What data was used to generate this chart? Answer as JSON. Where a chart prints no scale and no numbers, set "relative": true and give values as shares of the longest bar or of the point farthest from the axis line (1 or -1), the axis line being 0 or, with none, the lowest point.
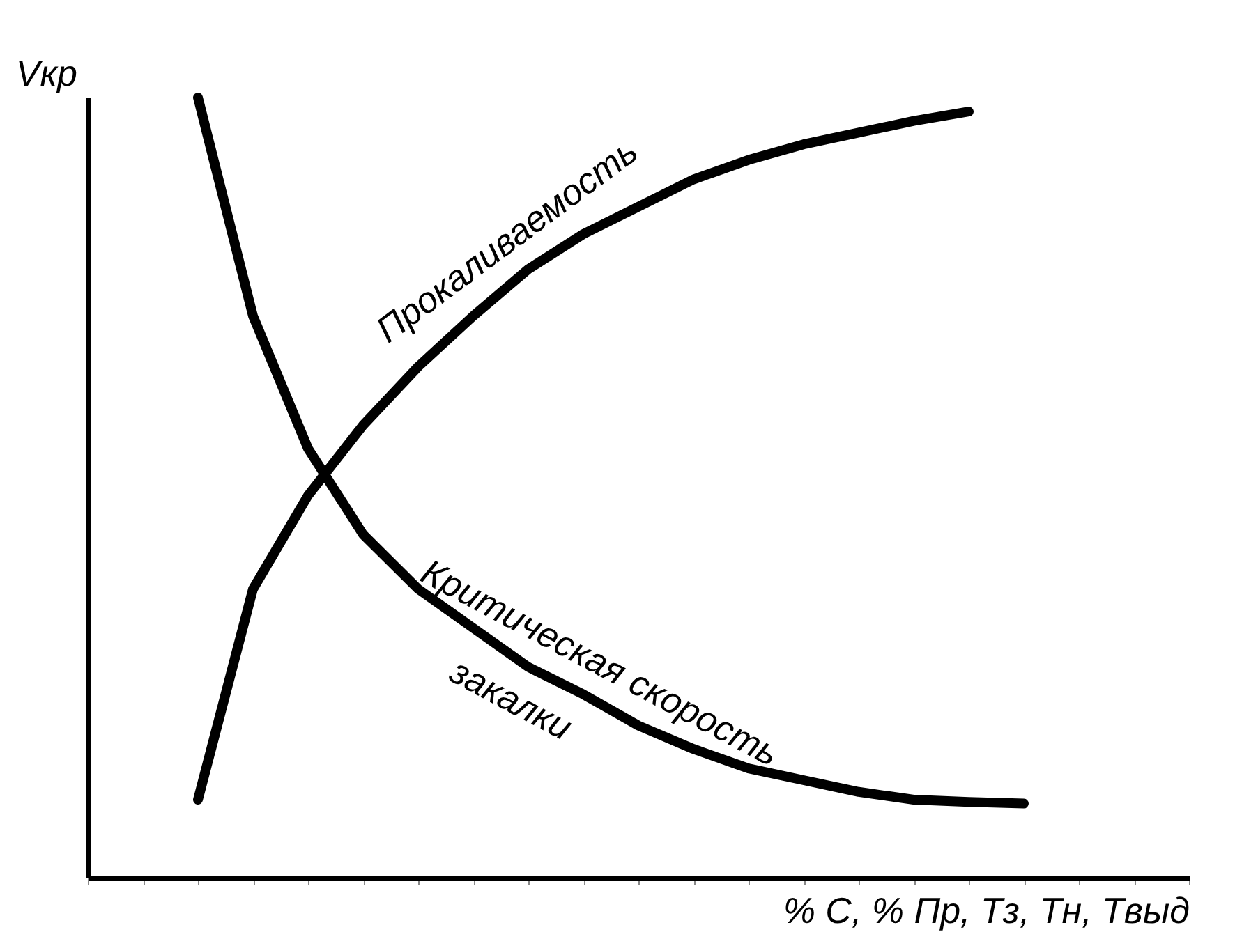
{
  "chart_data": {
    "type": "line",
    "relative": true,
    "xlabel": "% C, % Пр, Tз, Tн, Tвыд",
    "ylabel": "Vкр",
    "legend": false,
    "line_style": "solid",
    "categories": [
      null,
      null,
      null,
      null,
      null,
      null,
      null,
      null,
      null,
      null,
      null,
      null,
      null,
      null,
      null,
      null,
      null,
      null,
      null,
      null,
      null
    ],
    "series": [
      {
        "name": "Прокаливаемость",
        "color": "#000000",
        "values": [
          null,
          null,
          0.1,
          0.37,
          0.49,
          0.58,
          0.655,
          0.72,
          0.78,
          0.825,
          0.86,
          0.895,
          0.92,
          0.94,
          0.955,
          0.97,
          0.982,
          null,
          null,
          null,
          null
        ]
      },
      {
        "name": "Критическая скорость закалки",
        "color": "#000000",
        "values": [
          null,
          null,
          1.0,
          0.72,
          0.55,
          0.44,
          0.37,
          0.32,
          0.27,
          0.235,
          0.195,
          0.165,
          0.14,
          0.125,
          0.11,
          0.1,
          0.097,
          0.095,
          null,
          null,
          null
        ]
      }
    ]
  }
}
